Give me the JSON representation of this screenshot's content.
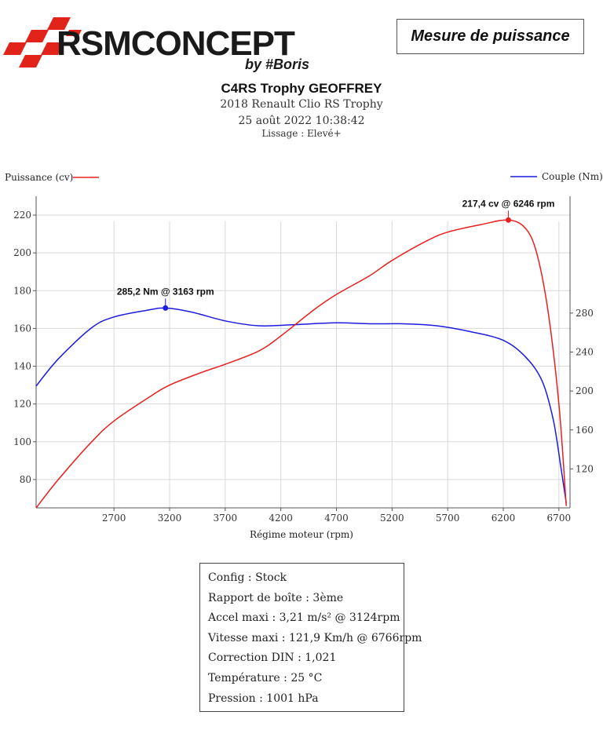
{
  "header": {
    "brand": "RSMCONCEPT",
    "brand_sub": "by #Boris",
    "badge": "Mesure de puissance",
    "title": "C4RS Trophy GEOFFREY",
    "car": "2018 Renault Clio RS Trophy",
    "date": "25 août 2022 10:38:42",
    "smoothing": "Lissage : Elevé+"
  },
  "colors": {
    "power": "#e8201e",
    "torque": "#1c1ce0",
    "grid": "#d9d9d9",
    "axis": "#555555",
    "logo_red": "#e2231a"
  },
  "chart_data": {
    "type": "line",
    "xlabel": "Régime moteur (rpm)",
    "xlim": [
      2000,
      6800
    ],
    "xticks": [
      2700,
      3200,
      3700,
      4200,
      4700,
      5200,
      5700,
      6200,
      6700
    ],
    "grid": true,
    "series": [
      {
        "name": "Puissance (cv)",
        "axis": "left",
        "ylim": [
          65,
          230
        ],
        "yticks": [
          80,
          100,
          120,
          140,
          160,
          180,
          200,
          220
        ],
        "x": [
          2000,
          2200,
          2500,
          2700,
          3000,
          3200,
          3500,
          3700,
          4000,
          4200,
          4500,
          4700,
          5000,
          5200,
          5500,
          5700,
          6000,
          6246,
          6400,
          6500,
          6600,
          6700,
          6766
        ],
        "values": [
          65,
          80,
          100,
          111,
          123,
          130,
          137,
          141,
          148,
          156,
          170,
          178,
          188,
          196,
          206,
          211,
          215,
          217.4,
          213,
          200,
          170,
          120,
          66
        ],
        "peak": {
          "x": 6246,
          "y": 217.4,
          "label": "217,4 cv @ 6246 rpm"
        }
      },
      {
        "name": "Couple (Nm)",
        "axis": "right",
        "ylim": [
          80,
          400
        ],
        "yticks": [
          120,
          160,
          200,
          240,
          280
        ],
        "x": [
          2000,
          2200,
          2500,
          2700,
          3000,
          3163,
          3400,
          3700,
          4000,
          4300,
          4700,
          5000,
          5300,
          5600,
          5900,
          6200,
          6400,
          6550,
          6650,
          6720,
          6766
        ],
        "values": [
          205,
          233,
          265,
          276,
          283,
          285.2,
          281,
          272,
          267,
          268,
          270,
          269,
          269,
          267,
          261,
          252,
          235,
          210,
          170,
          120,
          85
        ],
        "peak": {
          "x": 3163,
          "y": 285.2,
          "label": "285,2 Nm @ 3163 rpm"
        }
      }
    ]
  },
  "info": [
    "Config : Stock",
    "Rapport de boîte : 3ème",
    "Accel maxi : 3,21 m/s² @ 3124rpm",
    "Vitesse maxi : 121,9 Km/h @ 6766rpm",
    "Correction DIN : 1,021",
    "Température : 25 °C",
    "Pression : 1001 hPa"
  ]
}
